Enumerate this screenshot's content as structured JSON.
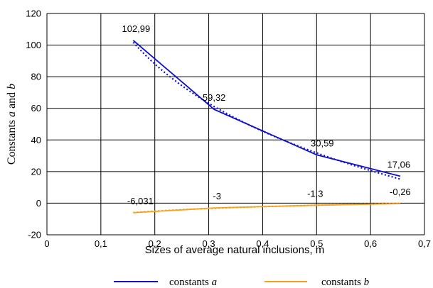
{
  "chart_data": {
    "type": "line",
    "xlabel": "Sizes of average natural inclusions, m",
    "ylabel_main": "Constants ",
    "ylabel_var1": "a",
    "ylabel_mid": " and ",
    "ylabel_var2": "b",
    "xlim": [
      0,
      0.7
    ],
    "ylim": [
      -20,
      120
    ],
    "xticks": [
      0,
      0.1,
      0.2,
      0.3,
      0.4,
      0.5,
      0.6,
      0.7
    ],
    "xtick_labels": [
      "0",
      "0,1",
      "0,2",
      "0,3",
      "0,4",
      "0,5",
      "0,6",
      "0,7"
    ],
    "yticks": [
      -20,
      0,
      20,
      40,
      60,
      80,
      100,
      120
    ],
    "ytick_labels": [
      "-20",
      "0",
      "20",
      "40",
      "60",
      "80",
      "100",
      "120"
    ],
    "grid": true,
    "legend_position": "bottom",
    "series": [
      {
        "name": "constants a",
        "legend_prefix": "constants ",
        "legend_var": "a",
        "color": "#1010c8",
        "x": [
          0.16,
          0.31,
          0.5,
          0.655
        ],
        "y": [
          102.99,
          59.32,
          30.59,
          17.06
        ],
        "labels": [
          "102,99",
          "59,32",
          "30,59",
          "17,06"
        ],
        "trend": "dotted"
      },
      {
        "name": "constants b",
        "legend_prefix": "constants ",
        "legend_var": "b",
        "color": "#f5a020",
        "x": [
          0.16,
          0.31,
          0.5,
          0.655
        ],
        "y": [
          -6.031,
          -3,
          -1.3,
          -0.26
        ],
        "labels": [
          "-6,031",
          "-3",
          "-1,3",
          "-0,26"
        ],
        "trend": "dotted"
      }
    ]
  }
}
